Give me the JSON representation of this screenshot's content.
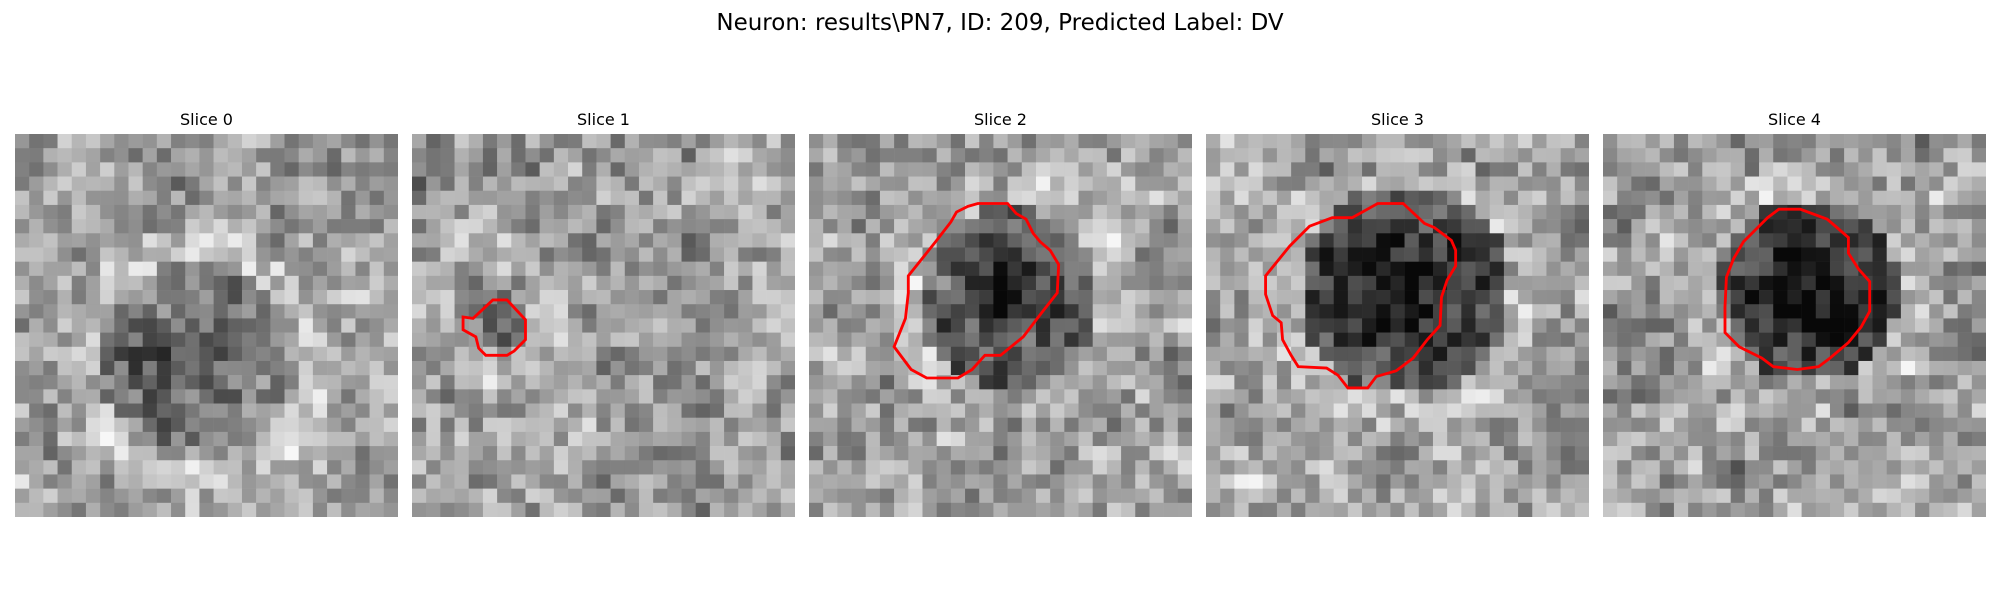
{
  "figure": {
    "title": "Neuron: results\\PN7, ID: 209, Predicted Label: DV"
  },
  "panels": [
    {
      "title": "Slice 0",
      "contour": false,
      "seed": 11
    },
    {
      "title": "Slice 1",
      "contour": true,
      "seed": 23
    },
    {
      "title": "Slice 2",
      "contour": true,
      "seed": 37
    },
    {
      "title": "Slice 3",
      "contour": true,
      "seed": 51
    },
    {
      "title": "Slice 4",
      "contour": true,
      "seed": 67
    }
  ],
  "colors": {
    "contour": "#ff0000",
    "background": "#ffffff"
  },
  "image": {
    "colormap": "gray",
    "grid": 27,
    "axes": "off"
  }
}
